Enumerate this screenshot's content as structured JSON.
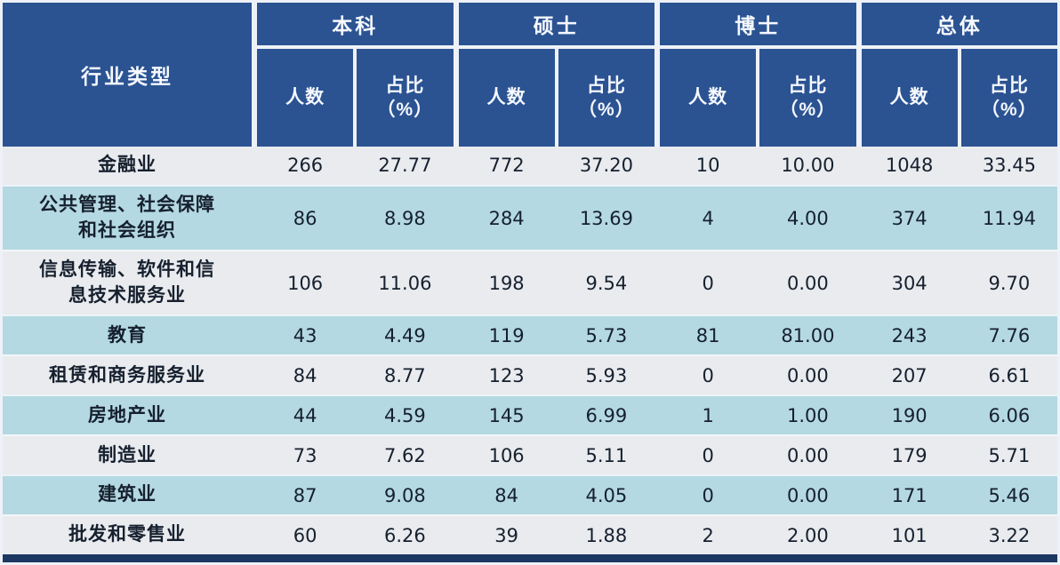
{
  "colors": {
    "header_bg": "#2b5392",
    "header_text": "#f5f8ff",
    "row_light": "#e9ebef",
    "row_blue": "#b4d9e2",
    "body_text": "#16202e",
    "grid_border": "#eef2f8",
    "bottom_edge": "#1d3763"
  },
  "table": {
    "corner_header": "行业类型",
    "groups": [
      {
        "label": "本科"
      },
      {
        "label": "硕士"
      },
      {
        "label": "博士"
      },
      {
        "label": "总体"
      }
    ],
    "sub_headers": {
      "count": "人数",
      "ratio": "占比",
      "ratio_unit": "（%）"
    },
    "rows": [
      {
        "industry": "金融业",
        "values": [
          "266",
          "27.77",
          "772",
          "37.20",
          "10",
          "10.00",
          "1048",
          "33.45"
        ]
      },
      {
        "industry": "公共管理、社会保障和社会组织",
        "values": [
          "86",
          "8.98",
          "284",
          "13.69",
          "4",
          "4.00",
          "374",
          "11.94"
        ]
      },
      {
        "industry": "信息传输、软件和信息技术服务业",
        "values": [
          "106",
          "11.06",
          "198",
          "9.54",
          "0",
          "0.00",
          "304",
          "9.70"
        ]
      },
      {
        "industry": "教育",
        "values": [
          "43",
          "4.49",
          "119",
          "5.73",
          "81",
          "81.00",
          "243",
          "7.76"
        ]
      },
      {
        "industry": "租赁和商务服务业",
        "values": [
          "84",
          "8.77",
          "123",
          "5.93",
          "0",
          "0.00",
          "207",
          "6.61"
        ]
      },
      {
        "industry": "房地产业",
        "values": [
          "44",
          "4.59",
          "145",
          "6.99",
          "1",
          "1.00",
          "190",
          "6.06"
        ]
      },
      {
        "industry": "制造业",
        "values": [
          "73",
          "7.62",
          "106",
          "5.11",
          "0",
          "0.00",
          "179",
          "5.71"
        ]
      },
      {
        "industry": "建筑业",
        "values": [
          "87",
          "9.08",
          "84",
          "4.05",
          "0",
          "0.00",
          "171",
          "5.46"
        ]
      },
      {
        "industry": "批发和零售业",
        "values": [
          "60",
          "6.26",
          "39",
          "1.88",
          "2",
          "2.00",
          "101",
          "3.22"
        ]
      }
    ]
  },
  "chart_data": {
    "type": "table",
    "row_header": "行业类型",
    "column_groups": [
      "本科",
      "硕士",
      "博士",
      "总体"
    ],
    "sub_columns": [
      "人数",
      "占比（%）"
    ],
    "columns": [
      "行业类型",
      "本科人数",
      "本科占比(%)",
      "硕士人数",
      "硕士占比(%)",
      "博士人数",
      "博士占比(%)",
      "总体人数",
      "总体占比(%)"
    ],
    "rows": [
      [
        "金融业",
        266,
        27.77,
        772,
        37.2,
        10,
        10.0,
        1048,
        33.45
      ],
      [
        "公共管理、社会保障和社会组织",
        86,
        8.98,
        284,
        13.69,
        4,
        4.0,
        374,
        11.94
      ],
      [
        "信息传输、软件和信息技术服务业",
        106,
        11.06,
        198,
        9.54,
        0,
        0.0,
        304,
        9.7
      ],
      [
        "教育",
        43,
        4.49,
        119,
        5.73,
        81,
        81.0,
        243,
        7.76
      ],
      [
        "租赁和商务服务业",
        84,
        8.77,
        123,
        5.93,
        0,
        0.0,
        207,
        6.61
      ],
      [
        "房地产业",
        44,
        4.59,
        145,
        6.99,
        1,
        1.0,
        190,
        6.06
      ],
      [
        "制造业",
        73,
        7.62,
        106,
        5.11,
        0,
        0.0,
        179,
        5.71
      ],
      [
        "建筑业",
        87,
        9.08,
        84,
        4.05,
        0,
        0.0,
        171,
        5.46
      ],
      [
        "批发和零售业",
        60,
        6.26,
        39,
        1.88,
        2,
        2.0,
        101,
        3.22
      ]
    ]
  }
}
